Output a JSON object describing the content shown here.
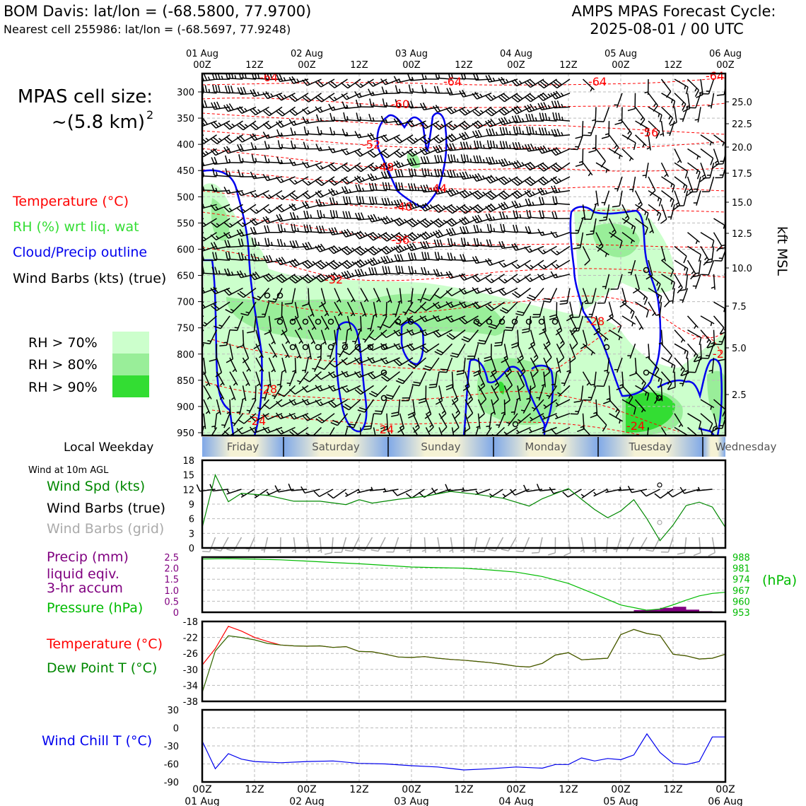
{
  "header": {
    "station_title": "BOM Davis: lat/lon = (-68.5800, 77.9700)",
    "nearest_cell": "Nearest cell 255986: lat/lon = (-68.5697, 77.9248)",
    "cycle_title": "AMPS MPAS Forecast Cycle:",
    "cycle_date": "2025-08-01 / 00 UTC"
  },
  "time_axis": {
    "hours": [
      0,
      12,
      24,
      36,
      48,
      60,
      72,
      84,
      96,
      108,
      120
    ],
    "hour_labels": [
      "00Z",
      "12Z",
      "00Z",
      "12Z",
      "00Z",
      "12Z",
      "00Z",
      "12Z",
      "00Z",
      "12Z",
      "00Z"
    ],
    "day_labels": [
      "01 Aug",
      "",
      "02 Aug",
      "",
      "03 Aug",
      "",
      "04 Aug",
      "",
      "05 Aug",
      "",
      "06 Aug"
    ]
  },
  "left_labels": {
    "cell_size_line1": "MPAS cell size:",
    "cell_size_line2": "~(5.8 km)",
    "cell_size_exp": "2",
    "temperature": "Temperature (°C)",
    "rh": "RH (%) wrt liq. wat",
    "cloud": "Cloud/Precip outline",
    "wind_barbs": "Wind Barbs (kts) (true)",
    "rh70": "RH > 70%",
    "rh80": "RH > 80%",
    "rh90": "RH > 90%",
    "local_weekday": "Local Weekday",
    "wind_10m": "Wind at 10m AGL",
    "wind_spd": "Wind Spd (kts)",
    "wind_barbs_true": "Wind Barbs (true)",
    "wind_barbs_grid": "Wind Barbs (grid)",
    "precip1": "Precip (mm)",
    "precip2": "liquid eqiv.",
    "precip3": "3-hr accum",
    "pressure": "Pressure (hPa)",
    "pressure_unit": "(hPa)",
    "temperature2": "Temperature (°C)",
    "dewpoint": "Dew Point T (°C)",
    "windchill": "Wind Chill T (°C)"
  },
  "colors": {
    "temperature": "#ff0000",
    "rh_label": "#33dd33",
    "cloud": "#0000ee",
    "wind_speed": "#008800",
    "grid_barbs": "#aaaaaa",
    "precip": "#800080",
    "pressure": "#00bb00",
    "dewpoint": "#336600",
    "windchill": "#0000ee",
    "rh70": "#ccffcc",
    "rh80": "#99ee99",
    "rh90": "#33dd33"
  },
  "weekdays": [
    "Friday",
    "Saturday",
    "Sunday",
    "Monday",
    "Tuesday",
    "Wednesday"
  ],
  "chart_data": [
    {
      "type": "heatmap",
      "title": "",
      "ylabel_right": "kft MSL",
      "y_pressure_ticks": [
        300,
        350,
        400,
        450,
        500,
        550,
        600,
        650,
        700,
        750,
        800,
        850,
        900,
        950
      ],
      "y_kft_ticks": [
        "25.0",
        "22.5",
        "20.0",
        "17.5",
        "15.0",
        "12.5",
        "10.0",
        "7.5",
        "5.0",
        "2.5"
      ],
      "temperature_contour_labels": [
        "-64",
        "-64",
        "-64",
        "-64",
        "-60",
        "-56",
        "-52",
        "-48",
        "-44",
        "-40",
        "-36",
        "-32",
        "-28",
        "-28",
        "-24",
        "-24",
        "-24",
        "-2"
      ]
    },
    {
      "type": "line",
      "title": "",
      "ylim": [
        0,
        18
      ],
      "yticks": [
        0,
        3,
        6,
        9,
        12,
        15,
        18
      ],
      "series": [
        {
          "name": "Wind Spd (kts)",
          "x": [
            0,
            3,
            6,
            9,
            15,
            21,
            27,
            33,
            36,
            39,
            45,
            51,
            57,
            63,
            69,
            75,
            78,
            84,
            87,
            90,
            93,
            96,
            99,
            102,
            105,
            108,
            111,
            114,
            117,
            120
          ],
          "values": [
            4.2,
            15,
            9.5,
            11.2,
            10.8,
            9.6,
            9.6,
            8.9,
            9.9,
            9.2,
            10,
            10.6,
            11.6,
            11,
            10.2,
            8.6,
            10.1,
            12.2,
            10,
            7.9,
            6.2,
            7.6,
            9.9,
            6,
            1.5,
            4.7,
            8.7,
            9.4,
            8.4,
            4.2
          ]
        }
      ]
    },
    {
      "type": "line",
      "title": "",
      "yticks_left": [
        "0",
        "0.5",
        "1.0",
        "1.5",
        "2.0",
        "2.5"
      ],
      "yticks_right": [
        "953",
        "960",
        "967",
        "974",
        "981",
        "988"
      ],
      "series": [
        {
          "name": "Pressure (hPa)",
          "x": [
            0,
            6,
            12,
            18,
            24,
            30,
            36,
            42,
            48,
            54,
            60,
            66,
            72,
            78,
            84,
            90,
            96,
            102,
            105,
            108,
            111,
            114,
            117,
            120
          ],
          "values": [
            986.8,
            987,
            986.7,
            986.3,
            985.5,
            984.6,
            983.8,
            982.8,
            981.7,
            981.3,
            981,
            979.9,
            978.5,
            975.7,
            971.3,
            964.6,
            957.6,
            954.3,
            955.1,
            957.7,
            960.7,
            963.4,
            965,
            965.7
          ]
        },
        {
          "name": "Precip (mm)",
          "x": [
            99,
            102,
            105,
            108,
            111,
            114
          ],
          "values": [
            0.1,
            0.12,
            0.2,
            0.25,
            0.12,
            0.05
          ]
        }
      ]
    },
    {
      "type": "line",
      "title": "",
      "ylim": [
        -38,
        -18
      ],
      "yticks": [
        -38,
        -34,
        -30,
        -26,
        -22,
        -18
      ],
      "series": [
        {
          "name": "Temperature (°C)",
          "x": [
            0,
            3,
            6,
            9,
            12,
            15,
            18,
            21,
            24,
            27,
            30,
            33,
            36,
            39,
            42,
            45,
            48,
            51,
            54,
            57,
            60,
            63,
            66,
            69,
            72,
            75,
            78,
            81,
            84,
            87,
            90,
            93,
            96,
            99,
            102,
            105,
            108,
            111,
            114,
            117,
            120
          ],
          "values": [
            -28.9,
            -24.8,
            -19.2,
            -20.4,
            -22,
            -23,
            -23.9,
            -24.1,
            -24.2,
            -24.1,
            -24.5,
            -24.3,
            -25.5,
            -25.6,
            -26.2,
            -26.9,
            -27,
            -26.8,
            -27.2,
            -27.5,
            -27.7,
            -28,
            -28.3,
            -28.7,
            -29.2,
            -29.4,
            -28.5,
            -26.4,
            -25.8,
            -27.6,
            -27.4,
            -27.2,
            -21.3,
            -20,
            -21,
            -21.5,
            -26.2,
            -26.6,
            -27.4,
            -27.2,
            -26.2
          ]
        },
        {
          "name": "Dew Point T (°C)",
          "x": [
            0,
            3,
            6,
            9,
            12,
            15,
            18,
            21,
            24,
            27,
            30,
            33,
            36,
            39,
            42,
            45,
            48,
            51,
            54,
            57,
            60,
            63,
            66,
            69,
            72,
            75,
            78,
            81,
            84,
            87,
            90,
            93,
            96,
            99,
            102,
            105,
            108,
            111,
            114,
            117,
            120
          ],
          "values": [
            -35.8,
            -25.4,
            -21.6,
            -22,
            -22.6,
            -23.5,
            -23.9,
            -24.1,
            -24.2,
            -24.1,
            -24.5,
            -24.3,
            -25.5,
            -25.6,
            -26.2,
            -26.9,
            -27,
            -26.8,
            -27.2,
            -27.5,
            -27.7,
            -28,
            -28.3,
            -28.7,
            -29.2,
            -29.4,
            -28.5,
            -26.4,
            -25.8,
            -27.6,
            -27.4,
            -27.2,
            -21.3,
            -20,
            -21,
            -21.5,
            -26.2,
            -26.6,
            -27.4,
            -27.2,
            -26.2
          ]
        }
      ]
    },
    {
      "type": "line",
      "title": "",
      "ylim": [
        -90,
        30
      ],
      "yticks": [
        -90,
        -60,
        -30,
        0,
        30
      ],
      "series": [
        {
          "name": "Wind Chill T (°C)",
          "x": [
            0,
            3,
            6,
            9,
            12,
            18,
            24,
            30,
            36,
            42,
            48,
            54,
            60,
            66,
            72,
            78,
            81,
            84,
            87,
            90,
            93,
            96,
            99,
            102,
            105,
            108,
            111,
            114,
            117,
            120
          ],
          "values": [
            -22,
            -68,
            -43,
            -52,
            -56,
            -58,
            -56,
            -55,
            -59,
            -60,
            -63,
            -65,
            -70,
            -68,
            -65,
            -67,
            -61,
            -61,
            -50,
            -55,
            -51,
            -53,
            -45,
            -10,
            -41,
            -59,
            -61,
            -56,
            -15,
            -15
          ]
        }
      ]
    }
  ]
}
